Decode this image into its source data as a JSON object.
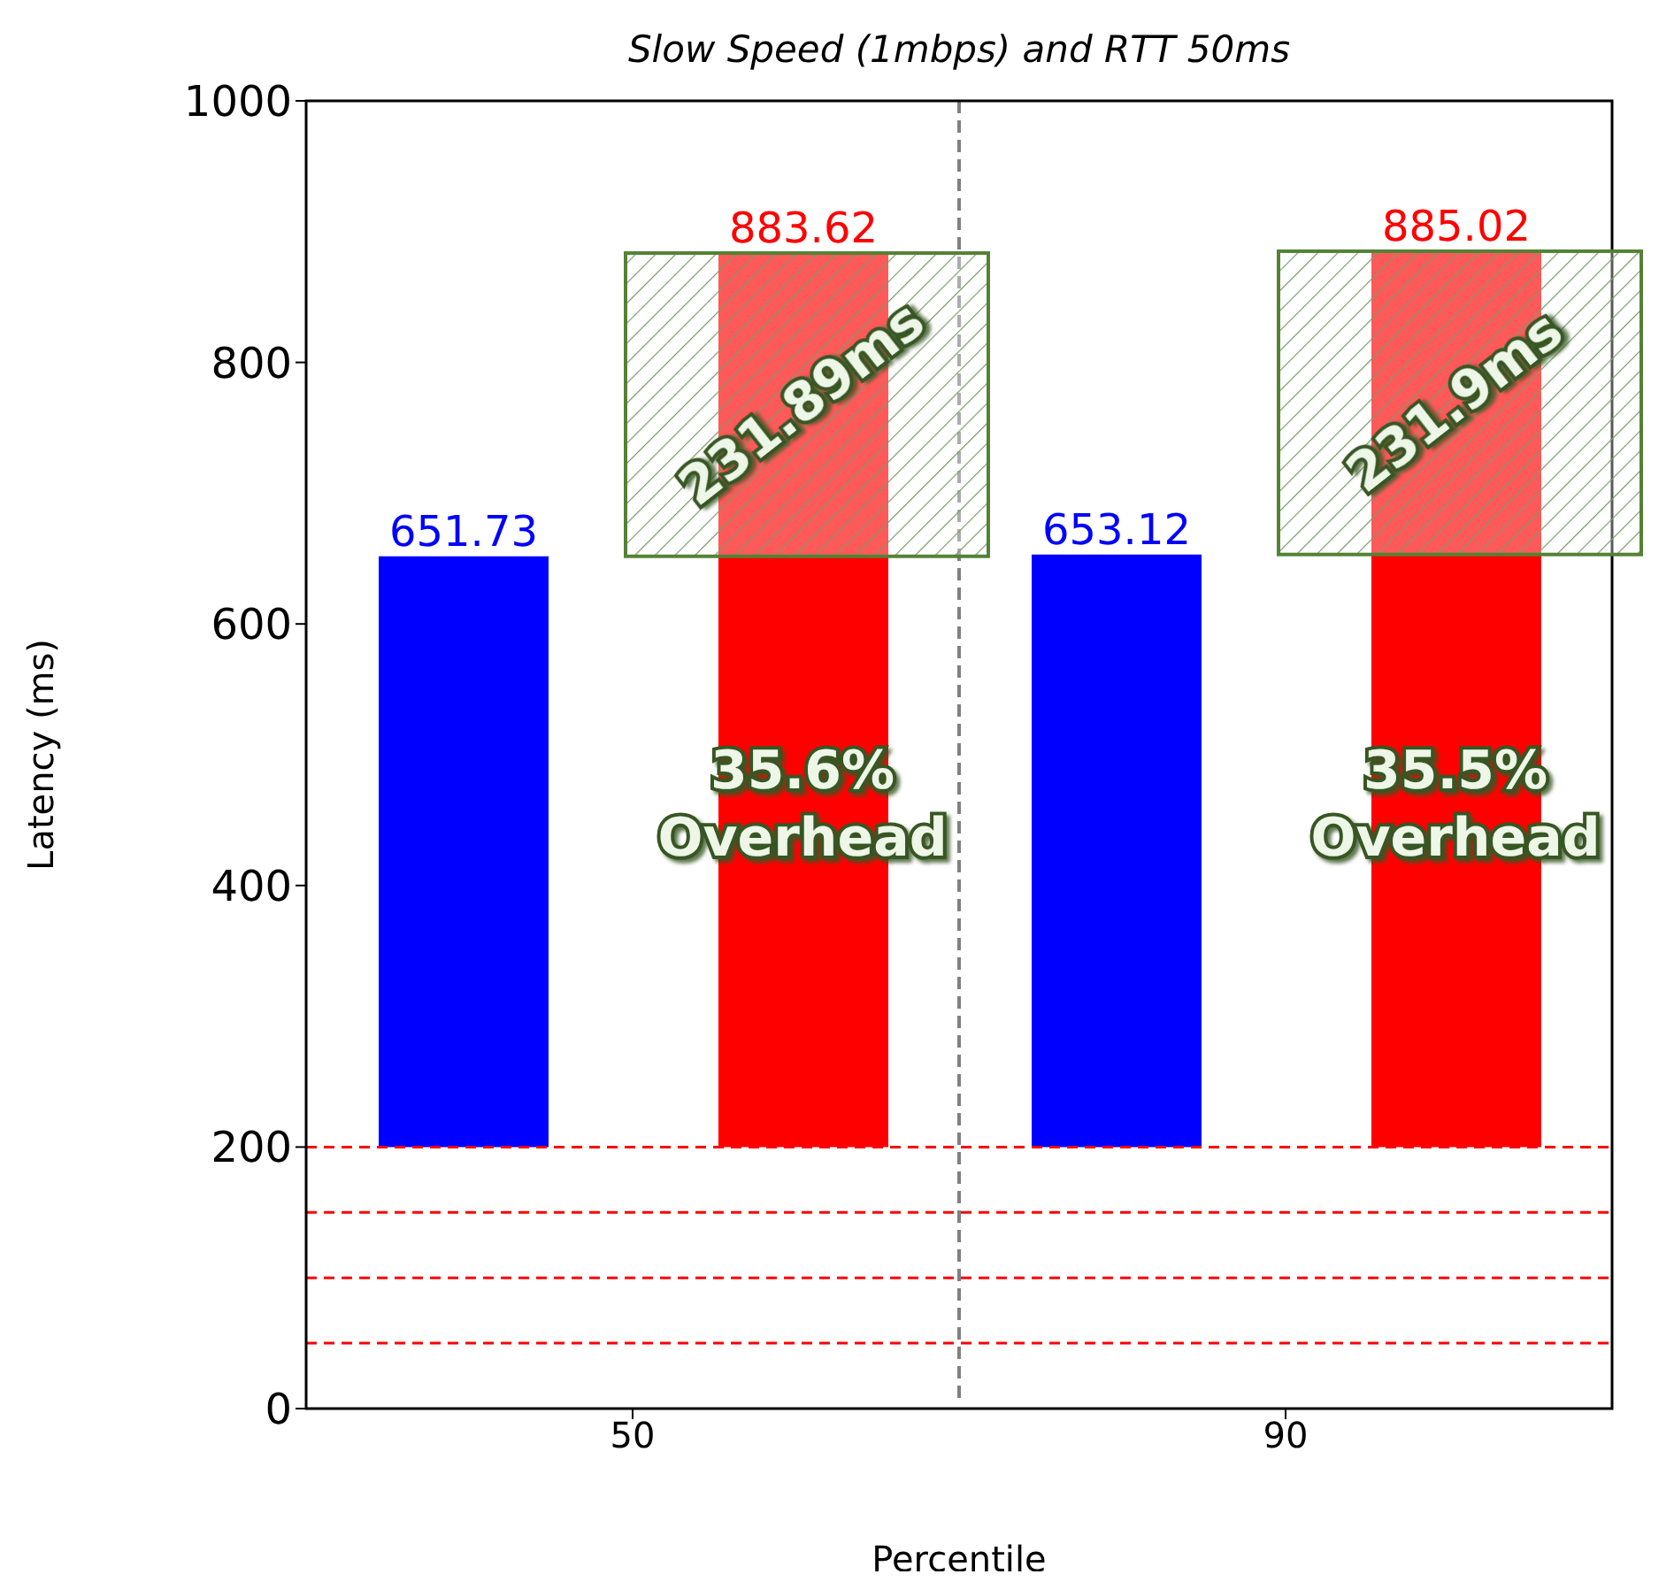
{
  "chart_data": {
    "type": "bar",
    "title": "Slow Speed (1mbps) and RTT 50ms",
    "xlabel": "Percentile",
    "ylabel": "Latency (ms)",
    "categories": [
      "50",
      "90"
    ],
    "series": [
      {
        "color": "#0000ff",
        "base": [
          200,
          200
        ],
        "values": [
          451.73,
          453.12
        ],
        "value_labels": [
          "651.73",
          "653.12"
        ]
      },
      {
        "color": "#ff0000",
        "base": [
          200,
          200
        ],
        "values": [
          683.62,
          685.02
        ],
        "value_labels": [
          "883.62",
          "885.02"
        ]
      }
    ],
    "ylim": [
      0,
      1000
    ],
    "yticks": [
      0,
      200,
      400,
      600,
      800,
      1000
    ],
    "ref_lines": [
      {
        "axis": "y",
        "value": 200,
        "color": "#ff0000",
        "line_style": "dashed"
      },
      {
        "axis": "y",
        "value": 150,
        "color": "#ff0000",
        "line_style": "dashed"
      },
      {
        "axis": "y",
        "value": 100,
        "color": "#ff0000",
        "line_style": "dashed"
      },
      {
        "axis": "y",
        "value": 50,
        "color": "#ff0000",
        "line_style": "dashed"
      }
    ],
    "annotations": [
      "231.89ms",
      "231.9ms",
      "35.6% Overhead",
      "35.5% Overhead"
    ]
  }
}
